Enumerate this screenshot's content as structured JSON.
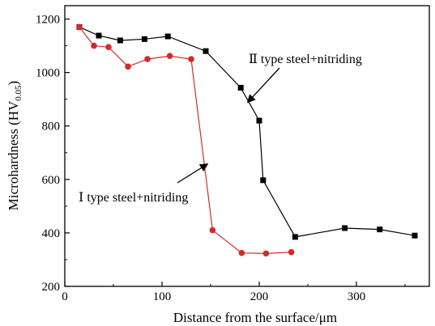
{
  "chart_data": {
    "type": "line",
    "xlabel": "Distance from the surface/μm",
    "ylabel": "Microhardness (HV",
    "ylabel_sub": "0.05",
    "ylabel_close": ")",
    "xlim": [
      0,
      375
    ],
    "ylim": [
      200,
      1250
    ],
    "xticks": [
      0,
      100,
      200,
      300
    ],
    "xtick_labels": [
      "0",
      "100",
      "200",
      "300"
    ],
    "yticks": [
      200,
      400,
      600,
      800,
      1000,
      1200
    ],
    "ytick_labels": [
      "200",
      "400",
      "600",
      "800",
      "1000",
      "1200"
    ],
    "grid": false,
    "series": [
      {
        "name": "Ⅱ type steel+nitriding",
        "color": "#000000",
        "marker": "square",
        "x": [
          15,
          35,
          57,
          82,
          106,
          145,
          181,
          200,
          204,
          237,
          288,
          324,
          360
        ],
        "y": [
          1170,
          1138,
          1120,
          1125,
          1135,
          1080,
          943,
          820,
          597,
          385,
          418,
          413,
          390
        ]
      },
      {
        "name": "Ⅰ type steel+nitriding",
        "color": "#d42a2a",
        "marker": "circle",
        "x": [
          15,
          30,
          45,
          65,
          85,
          108,
          130,
          152,
          182,
          207,
          233
        ],
        "y": [
          1170,
          1100,
          1095,
          1022,
          1050,
          1062,
          1050,
          410,
          325,
          323,
          328
        ]
      }
    ],
    "annotations": [
      {
        "text": "Ⅱ type steel+nitriding",
        "target": [
          188,
          888
        ]
      },
      {
        "text": "Ⅰ type steel+nitriding",
        "target": [
          147,
          658
        ]
      }
    ]
  }
}
